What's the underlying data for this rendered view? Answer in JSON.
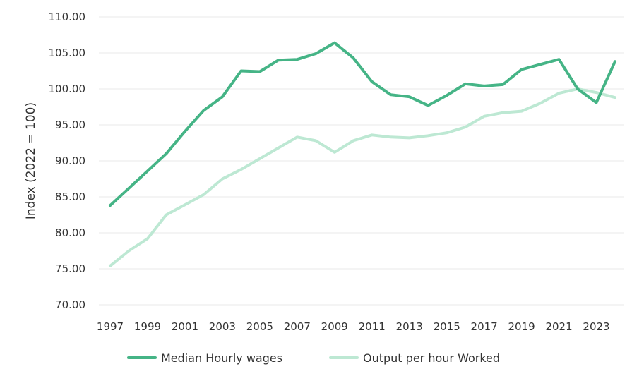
{
  "chart_data": {
    "type": "line",
    "title": "",
    "xlabel": "",
    "ylabel": "Index  (2022 = 100)",
    "x": [
      1997,
      1998,
      1999,
      2000,
      2001,
      2002,
      2003,
      2004,
      2005,
      2006,
      2007,
      2008,
      2009,
      2010,
      2011,
      2012,
      2013,
      2014,
      2015,
      2016,
      2017,
      2018,
      2019,
      2020,
      2021,
      2022,
      2023,
      2024
    ],
    "x_tick_labels": [
      "1997",
      "1999",
      "2001",
      "2003",
      "2005",
      "2007",
      "2009",
      "2011",
      "2013",
      "2015",
      "2017",
      "2019",
      "2021",
      "2023"
    ],
    "y_tick_labels": [
      "70.00",
      "75.00",
      "80.00",
      "85.00",
      "90.00",
      "95.00",
      "100.00",
      "105.00",
      "110.00"
    ],
    "ylim": [
      70,
      110
    ],
    "grid": true,
    "legend_position": "bottom",
    "series": [
      {
        "name": "Median Hourly wages",
        "color": "#45b486",
        "values": [
          83.8,
          86.2,
          88.6,
          91.0,
          94.1,
          97.0,
          98.9,
          102.5,
          102.4,
          104.0,
          104.1,
          104.9,
          106.4,
          104.3,
          101.0,
          99.2,
          98.9,
          97.7,
          99.1,
          100.7,
          100.4,
          100.6,
          102.7,
          103.4,
          104.1,
          100.0,
          98.1,
          103.8
        ]
      },
      {
        "name": "Output per hour Worked",
        "color": "#bde8d3",
        "values": [
          75.4,
          77.5,
          79.2,
          82.5,
          83.9,
          85.3,
          87.5,
          88.8,
          90.3,
          91.8,
          93.3,
          92.8,
          91.2,
          92.8,
          93.6,
          93.3,
          93.2,
          93.5,
          93.9,
          94.7,
          96.2,
          96.7,
          96.9,
          98.0,
          99.4,
          100.0,
          99.5,
          98.8
        ]
      }
    ]
  },
  "legend": {
    "items": [
      {
        "label": "Median Hourly wages",
        "color": "#45b486"
      },
      {
        "label": "Output per hour Worked",
        "color": "#bde8d3"
      }
    ]
  }
}
